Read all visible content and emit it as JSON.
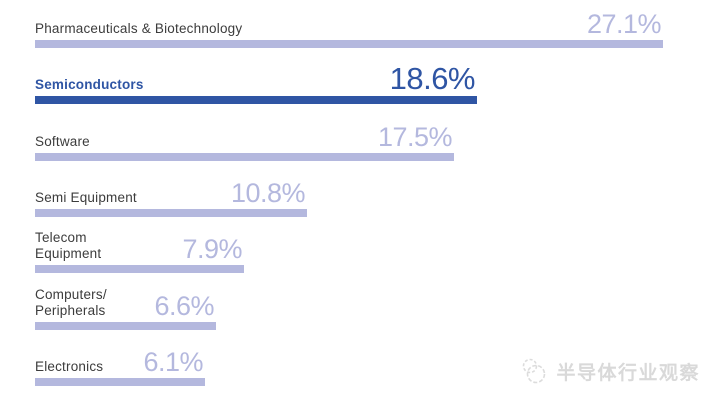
{
  "chart_data": {
    "type": "bar",
    "orientation": "horizontal",
    "title": "",
    "categories": [
      "Pharmaceuticals & Biotechnology",
      "Semiconductors",
      "Software",
      "Semi Equipment",
      "Telecom\nEquipment",
      "Computers/\nPeripherals",
      "Electronics"
    ],
    "values": [
      27.1,
      18.6,
      17.5,
      10.8,
      7.9,
      6.6,
      6.1
    ],
    "value_labels": [
      "27.1%",
      "18.6%",
      "17.5%",
      "10.8%",
      "7.9%",
      "6.6%",
      "6.1%"
    ],
    "highlighted_index": 1,
    "highlighted_category": "Semiconductors",
    "xlim": [
      0,
      27.1
    ],
    "grid": false,
    "legend": "none",
    "colors": {
      "bar": "#b4b8de",
      "highlight_bar": "#2f55a4",
      "label_text": "#3c3c3c",
      "highlight_label_text": "#2f55a4",
      "value_text": "#b4b8de",
      "highlight_value_text": "#2f55a4",
      "watermark": "#d9d9d9",
      "background": "#ffffff"
    }
  },
  "watermark": {
    "text": "半导体行业观察",
    "icon": "overlapping-circles-logo"
  }
}
